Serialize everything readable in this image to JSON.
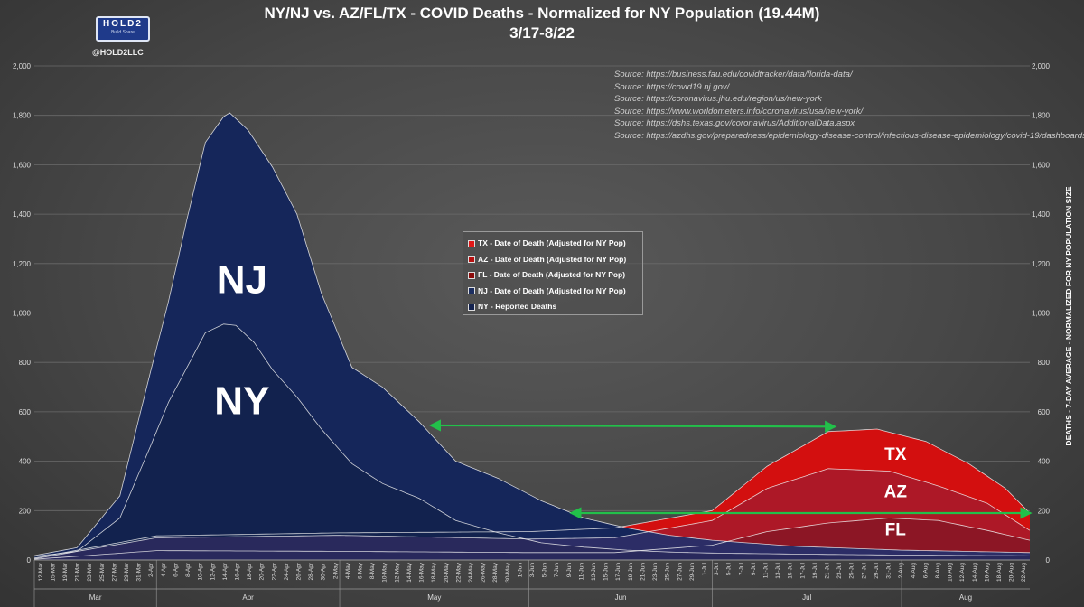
{
  "header": {
    "title_line1": "NY/NJ vs. AZ/FL/TX - COVID Deaths - Normalized for NY Population (19.44M)",
    "title_line2": "3/17-8/22",
    "logo_text": "HOLD2",
    "logo_tagline": "Build Share",
    "handle": "@HOLD2LLC"
  },
  "sources": [
    "Source: https://business.fau.edu/covidtracker/data/florida-data/",
    "Source: https://covid19.nj.gov/",
    "Source: https://coronavirus.jhu.edu/region/us/new-york",
    "Source: https://www.worldometers.info/coronavirus/usa/new-york/",
    "Source: https://dshs.texas.gov/coronavirus/AdditionalData.aspx",
    "Source: https://azdhs.gov/preparedness/epidemiology-disease-control/infectious-disease-epidemiology/covid-19/dashboards/"
  ],
  "chart_data": {
    "type": "area",
    "ylabel": "DEATHS - 7-DAY AVERAGE - NORMALIZED FOR NY POPULATION SIZE",
    "ylim": [
      0,
      2000
    ],
    "yticks": [
      "0",
      "200",
      "400",
      "600",
      "800",
      "1,000",
      "1,200",
      "1,400",
      "1,600",
      "1,800",
      "2,000"
    ],
    "x_start": "2020-03-12",
    "x_end": "2020-08-22",
    "x_tick_labels": [
      "12-Mar",
      "15-Mar",
      "19-Mar",
      "21-Mar",
      "23-Mar",
      "25-Mar",
      "27-Mar",
      "29-Mar",
      "31-Mar",
      "2-Apr",
      "4-Apr",
      "6-Apr",
      "8-Apr",
      "10-Apr",
      "12-Apr",
      "14-Apr",
      "16-Apr",
      "18-Apr",
      "20-Apr",
      "22-Apr",
      "24-Apr",
      "26-Apr",
      "28-Apr",
      "30-Apr",
      "2-May",
      "4-May",
      "6-May",
      "8-May",
      "10-May",
      "12-May",
      "14-May",
      "16-May",
      "18-May",
      "20-May",
      "22-May",
      "24-May",
      "26-May",
      "28-May",
      "30-May",
      "1-Jun",
      "3-Jun",
      "5-Jun",
      "7-Jun",
      "9-Jun",
      "11-Jun",
      "13-Jun",
      "15-Jun",
      "17-Jun",
      "19-Jun",
      "21-Jun",
      "23-Jun",
      "25-Jun",
      "27-Jun",
      "29-Jun",
      "1-Jul",
      "3-Jul",
      "5-Jul",
      "7-Jul",
      "9-Jul",
      "11-Jul",
      "13-Jul",
      "15-Jul",
      "17-Jul",
      "19-Jul",
      "21-Jul",
      "23-Jul",
      "25-Jul",
      "27-Jul",
      "29-Jul",
      "31-Jul",
      "2-Aug",
      "4-Aug",
      "6-Aug",
      "8-Aug",
      "10-Aug",
      "12-Aug",
      "14-Aug",
      "16-Aug",
      "18-Aug",
      "20-Aug",
      "22-Aug"
    ],
    "months": [
      "Mar",
      "Apr",
      "May",
      "Jun",
      "Jul",
      "Aug"
    ],
    "legend": [
      {
        "label": "TX - Date of Death (Adjusted for NY Pop)",
        "color": "#e01818"
      },
      {
        "label": "AZ - Date of Death (Adjusted for NY Pop)",
        "color": "#b81010"
      },
      {
        "label": "FL - Date of Death (Adjusted for NY Pop)",
        "color": "#8c0c0c"
      },
      {
        "label": "NJ - Date of Death (Adjusted for NY Pop)",
        "color": "#1c2e60"
      },
      {
        "label": "NY - Reported Deaths",
        "color": "#142350"
      }
    ],
    "series": [
      {
        "name": "NY",
        "x": [
          "2020-03-12",
          "2020-03-19",
          "2020-03-26",
          "2020-03-31",
          "2020-04-03",
          "2020-04-06",
          "2020-04-09",
          "2020-04-12",
          "2020-04-14",
          "2020-04-17",
          "2020-04-20",
          "2020-04-24",
          "2020-04-28",
          "2020-05-03",
          "2020-05-08",
          "2020-05-14",
          "2020-05-20",
          "2020-05-27",
          "2020-06-03",
          "2020-06-10",
          "2020-06-17",
          "2020-06-24",
          "2020-07-01",
          "2020-07-15",
          "2020-08-01",
          "2020-08-22"
        ],
        "values": [
          15,
          35,
          170,
          460,
          640,
          780,
          920,
          955,
          950,
          880,
          770,
          660,
          530,
          390,
          310,
          250,
          160,
          110,
          70,
          52,
          40,
          32,
          28,
          24,
          20,
          17
        ]
      },
      {
        "name": "NJ",
        "x": [
          "2020-03-12",
          "2020-03-19",
          "2020-03-26",
          "2020-03-31",
          "2020-04-03",
          "2020-04-06",
          "2020-04-09",
          "2020-04-12",
          "2020-04-13",
          "2020-04-16",
          "2020-04-20",
          "2020-04-24",
          "2020-04-28",
          "2020-05-03",
          "2020-05-08",
          "2020-05-14",
          "2020-05-20",
          "2020-05-27",
          "2020-06-03",
          "2020-06-10",
          "2020-06-17",
          "2020-06-24",
          "2020-07-01",
          "2020-07-15",
          "2020-08-01",
          "2020-08-22"
        ],
        "values": [
          18,
          50,
          260,
          760,
          1050,
          1380,
          1690,
          1795,
          1810,
          1740,
          1590,
          1400,
          1080,
          780,
          700,
          560,
          400,
          330,
          240,
          170,
          130,
          100,
          80,
          55,
          40,
          30
        ]
      },
      {
        "name": "FL",
        "x": [
          "2020-03-12",
          "2020-04-01",
          "2020-05-01",
          "2020-06-01",
          "2020-06-15",
          "2020-07-01",
          "2020-07-10",
          "2020-07-20",
          "2020-07-30",
          "2020-08-07",
          "2020-08-15",
          "2020-08-22"
        ],
        "values": [
          3,
          38,
          35,
          30,
          30,
          60,
          115,
          150,
          170,
          160,
          120,
          80
        ]
      },
      {
        "name": "AZ",
        "x": [
          "2020-03-12",
          "2020-04-01",
          "2020-05-01",
          "2020-06-01",
          "2020-06-15",
          "2020-07-01",
          "2020-07-10",
          "2020-07-20",
          "2020-07-30",
          "2020-08-07",
          "2020-08-15",
          "2020-08-22"
        ],
        "values": [
          5,
          90,
          100,
          85,
          90,
          160,
          290,
          370,
          360,
          300,
          230,
          120
        ]
      },
      {
        "name": "TX",
        "x": [
          "2020-03-12",
          "2020-04-01",
          "2020-05-01",
          "2020-06-01",
          "2020-06-15",
          "2020-07-01",
          "2020-07-10",
          "2020-07-20",
          "2020-07-28",
          "2020-08-05",
          "2020-08-12",
          "2020-08-18",
          "2020-08-22"
        ],
        "values": [
          8,
          98,
          110,
          115,
          130,
          200,
          380,
          520,
          530,
          480,
          390,
          290,
          190
        ]
      }
    ],
    "series_labels": [
      {
        "text": "NJ",
        "x": "2020-04-15",
        "y": 1080
      },
      {
        "text": "NY",
        "x": "2020-04-15",
        "y": 590
      },
      {
        "text": "TX",
        "x": "2020-07-31",
        "y": 405
      },
      {
        "text": "AZ",
        "x": "2020-07-31",
        "y": 255
      },
      {
        "text": "FL",
        "x": "2020-07-31",
        "y": 100
      }
    ],
    "arrows": [
      {
        "from": {
          "x": "2020-05-16",
          "y": 545
        },
        "to": {
          "x": "2020-07-21",
          "y": 540
        }
      },
      {
        "from": {
          "x": "2020-06-08",
          "y": 190
        },
        "to": {
          "x": "2020-08-22",
          "y": 190
        }
      }
    ]
  }
}
